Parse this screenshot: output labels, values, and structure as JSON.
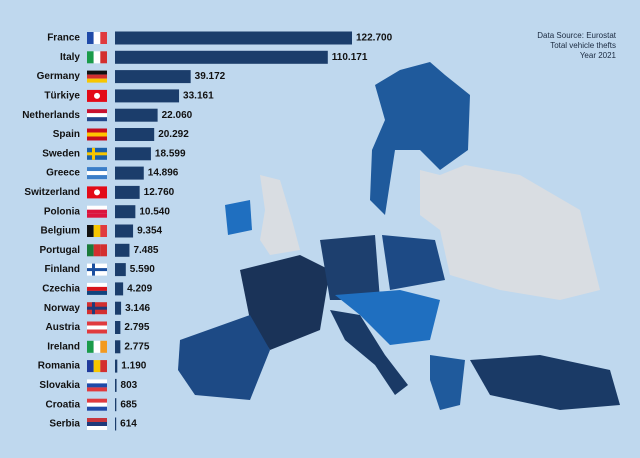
{
  "chart_data": {
    "type": "bar",
    "orientation": "horizontal",
    "annotations": [
      "Data Source: Eurostat",
      "Total vehicle thefts",
      "Year 2021"
    ],
    "categories": [
      "France",
      "Italy",
      "Germany",
      "Türkiye",
      "Netherlands",
      "Spain",
      "Sweden",
      "Greece",
      "Switzerland",
      "Polonia",
      "Belgium",
      "Portugal",
      "Finland",
      "Czechia",
      "Norway",
      "Austria",
      "Ireland",
      "Romania",
      "Slovakia",
      "Croatia",
      "Serbia"
    ],
    "values": [
      122700,
      110171,
      39172,
      33161,
      22060,
      20292,
      18599,
      14896,
      12760,
      10540,
      9354,
      7485,
      5590,
      4209,
      3146,
      2795,
      2775,
      1190,
      803,
      685,
      614
    ],
    "value_labels": [
      "122.700",
      "110.171",
      "39.172",
      "33.161",
      "22.060",
      "20.292",
      "18.599",
      "14.896",
      "12.760",
      "10.540",
      "9.354",
      "7.485",
      "5.590",
      "4.209",
      "3.146",
      "2.795",
      "2.775",
      "1.190",
      "803",
      "685",
      "614"
    ],
    "color": "#1b3d6b"
  }
}
